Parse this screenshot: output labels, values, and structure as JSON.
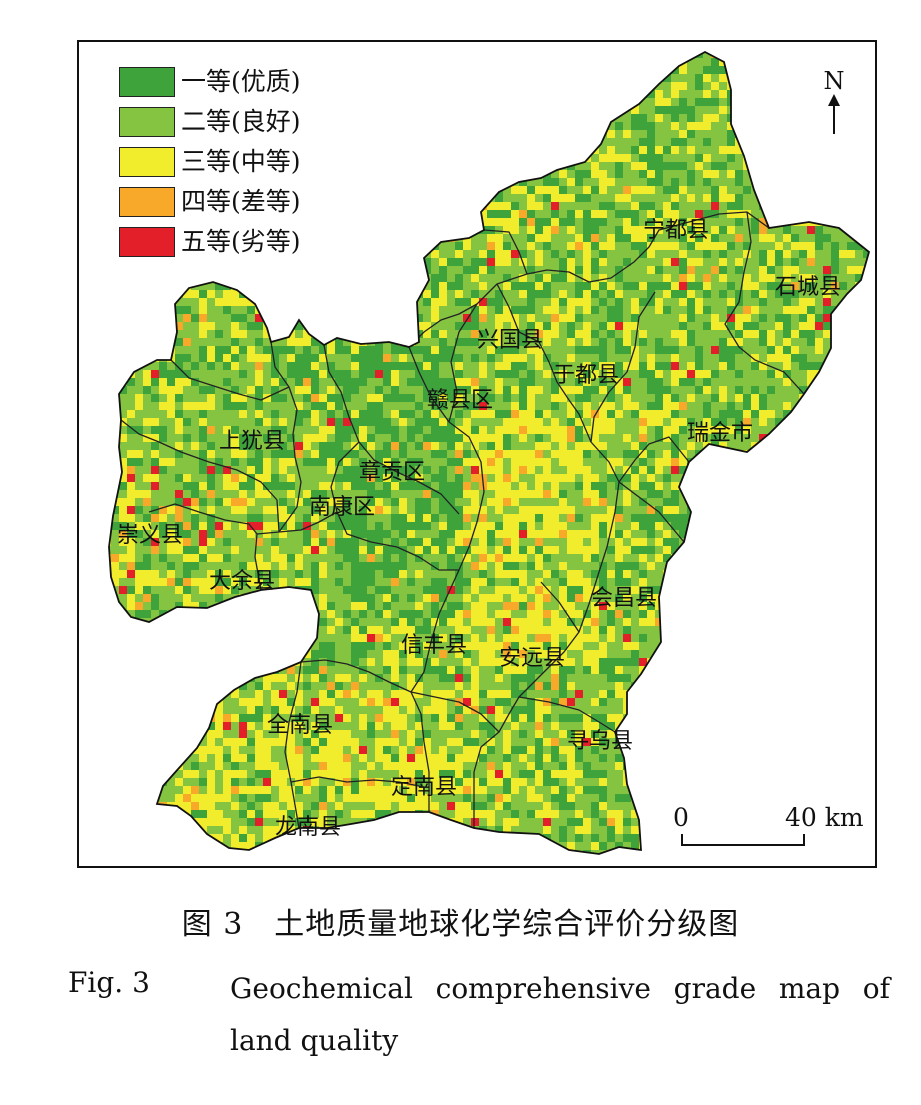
{
  "legend": {
    "items": [
      {
        "label": "一等(优质)",
        "color": "#3fa33c"
      },
      {
        "label": "二等(良好)",
        "color": "#84c440"
      },
      {
        "label": "三等(中等)",
        "color": "#f1ec2c"
      },
      {
        "label": "四等(差等)",
        "color": "#f8a92a"
      },
      {
        "label": "五等(劣等)",
        "color": "#e3202a"
      }
    ]
  },
  "north_label": "N",
  "scale": {
    "zero": "0",
    "end": "40 km"
  },
  "counties": {
    "ningdu": "宁都县",
    "shicheng": "石城县",
    "xingguo": "兴国县",
    "yudu": "于都县",
    "ganxian": "赣县区",
    "ruijin": "瑞金市",
    "shangyou": "上犹县",
    "zhanggong": "章贡区",
    "nankang": "南康区",
    "chongyi": "崇义县",
    "dayu": "大余县",
    "huichang": "会昌县",
    "xinfeng": "信丰县",
    "anyuan": "安远县",
    "quannan": "全南县",
    "xunwu": "寻乌县",
    "dingnan": "定南县",
    "longnan": "龙南县"
  },
  "caption": {
    "cn": "图 3　土地质量地球化学综合评价分级图",
    "en_label": "Fig. 3",
    "en_text": "Geochemical comprehensive grade map of land quality"
  }
}
